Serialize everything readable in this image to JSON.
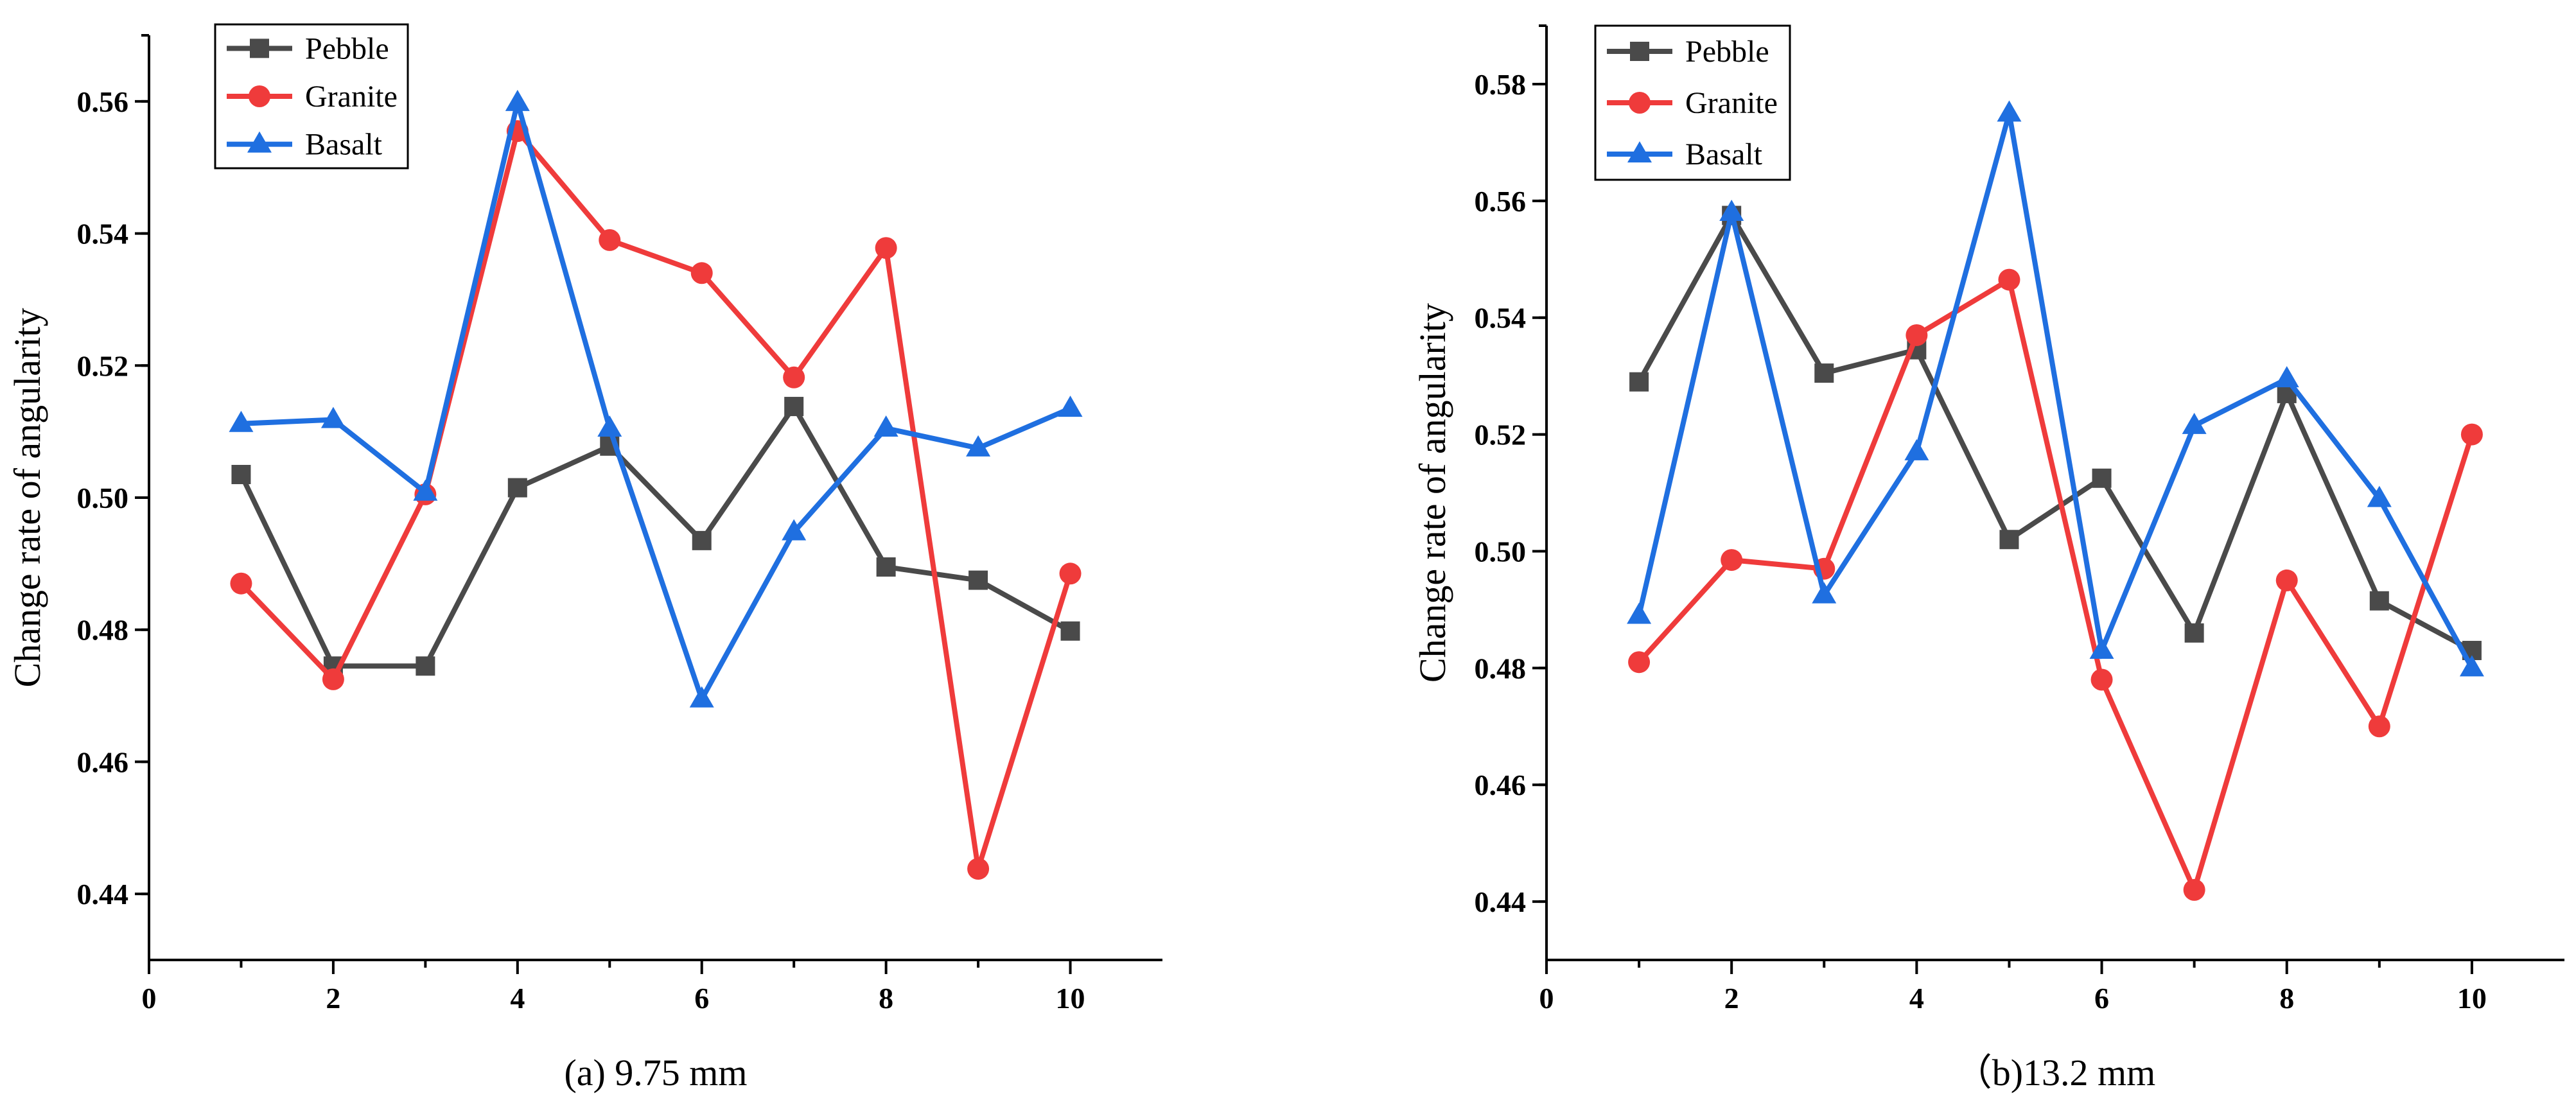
{
  "chart_data": [
    {
      "type": "line",
      "caption": "(a) 9.75 mm",
      "ylabel": "Change rate of angularity",
      "xlabel": "",
      "xlim": [
        0,
        11
      ],
      "ylim": [
        0.43,
        0.57
      ],
      "x_ticks": [
        0,
        2,
        4,
        6,
        8,
        10
      ],
      "x_tick_labels": [
        "0",
        "2",
        "4",
        "6",
        "8",
        "10"
      ],
      "y_ticks": [
        0.44,
        0.46,
        0.48,
        0.5,
        0.52,
        0.54,
        0.56
      ],
      "y_tick_labels": [
        "0.44",
        "0.46",
        "0.48",
        "0.50",
        "0.52",
        "0.54",
        "0.56"
      ],
      "legend_position": "top-left",
      "x": [
        1,
        2,
        3,
        4,
        5,
        6,
        7,
        8,
        9,
        10
      ],
      "series": [
        {
          "name": "Pebble",
          "color": "#4a4a4a",
          "marker": "square",
          "values": [
            0.5035,
            0.4745,
            0.4745,
            0.5015,
            0.5078,
            0.4935,
            0.5138,
            0.4895,
            0.4875,
            0.4798
          ]
        },
        {
          "name": "Granite",
          "color": "#ef3b3b",
          "marker": "circle",
          "values": [
            0.487,
            0.4725,
            0.5005,
            0.5555,
            0.539,
            0.534,
            0.5182,
            0.5378,
            0.4438,
            0.4885
          ]
        },
        {
          "name": "Basalt",
          "color": "#1f6fe0",
          "marker": "triangle",
          "values": [
            0.5112,
            0.5118,
            0.5008,
            0.5598,
            0.5105,
            0.4695,
            0.4948,
            0.5105,
            0.5075,
            0.5135
          ]
        }
      ]
    },
    {
      "type": "line",
      "caption": "（b)13.2 mm",
      "ylabel": "Change rate of angularity",
      "xlabel": "",
      "xlim": [
        0,
        11
      ],
      "ylim": [
        0.43,
        0.59
      ],
      "x_ticks": [
        0,
        2,
        4,
        6,
        8,
        10
      ],
      "x_tick_labels": [
        "0",
        "2",
        "4",
        "6",
        "8",
        "10"
      ],
      "y_ticks": [
        0.44,
        0.46,
        0.48,
        0.5,
        0.52,
        0.54,
        0.56,
        0.58
      ],
      "y_tick_labels": [
        "0.44",
        "0.46",
        "0.48",
        "0.50",
        "0.52",
        "0.54",
        "0.56",
        "0.58"
      ],
      "legend_position": "top-left",
      "x": [
        1,
        2,
        3,
        4,
        5,
        6,
        7,
        8,
        9,
        10
      ],
      "series": [
        {
          "name": "Pebble",
          "color": "#4a4a4a",
          "marker": "square",
          "values": [
            0.529,
            0.5575,
            0.5305,
            0.5345,
            0.502,
            0.5125,
            0.486,
            0.527,
            0.4915,
            0.483
          ]
        },
        {
          "name": "Granite",
          "color": "#ef3b3b",
          "marker": "circle",
          "values": [
            0.481,
            0.4985,
            0.497,
            0.537,
            0.5465,
            0.478,
            0.442,
            0.495,
            0.47,
            0.52
          ]
        },
        {
          "name": "Basalt",
          "color": "#1f6fe0",
          "marker": "triangle",
          "values": [
            0.489,
            0.558,
            0.4925,
            0.517,
            0.575,
            0.483,
            0.5215,
            0.5295,
            0.509,
            0.48
          ]
        }
      ]
    }
  ]
}
